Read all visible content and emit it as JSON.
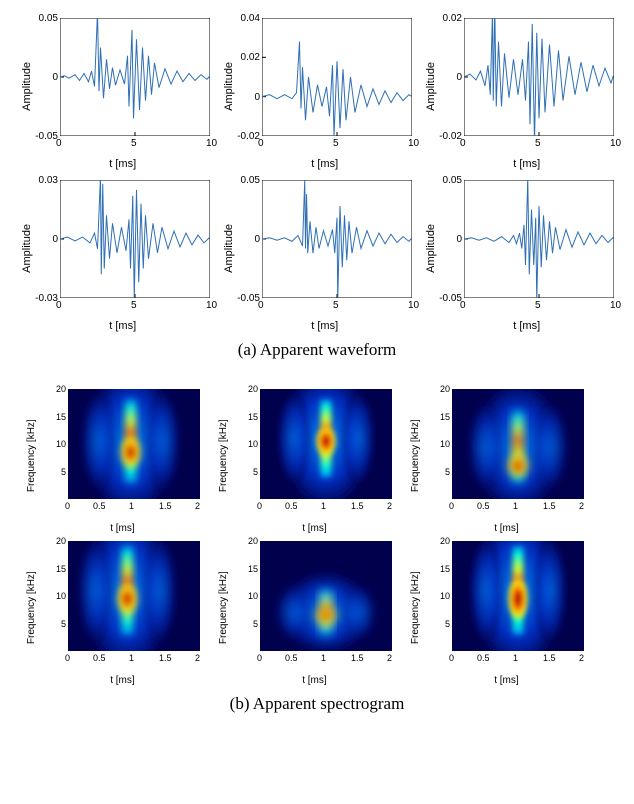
{
  "waveforms": {
    "ylabel": "Amplitude",
    "xlabel": "t [ms]",
    "line_color": "#2f6fb3",
    "axis_color": "#000000",
    "background_color": "#ffffff",
    "label_fontsize": 11,
    "tick_fontsize": 10,
    "xlim": [
      0,
      10
    ],
    "xtick_step": 5,
    "panels": [
      {
        "ylim": [
          -0.05,
          0.05
        ],
        "yticks": [
          -0.05,
          0,
          0.05
        ],
        "series": [
          [
            0,
            0
          ],
          [
            0.3,
            0.001
          ],
          [
            0.6,
            -0.001
          ],
          [
            1,
            0.002
          ],
          [
            1.3,
            -0.003
          ],
          [
            1.6,
            0.003
          ],
          [
            1.9,
            -0.004
          ],
          [
            2.1,
            0.005
          ],
          [
            2.3,
            -0.008
          ],
          [
            2.5,
            0.055
          ],
          [
            2.6,
            -0.012
          ],
          [
            2.7,
            0.025
          ],
          [
            2.9,
            -0.018
          ],
          [
            3.1,
            0.015
          ],
          [
            3.3,
            -0.01
          ],
          [
            3.5,
            0.008
          ],
          [
            3.7,
            -0.007
          ],
          [
            4,
            0.006
          ],
          [
            4.3,
            -0.006
          ],
          [
            4.5,
            0.018
          ],
          [
            4.6,
            -0.025
          ],
          [
            4.8,
            0.04
          ],
          [
            4.9,
            -0.035
          ],
          [
            5.1,
            0.032
          ],
          [
            5.3,
            -0.028
          ],
          [
            5.5,
            0.025
          ],
          [
            5.7,
            -0.02
          ],
          [
            5.9,
            0.018
          ],
          [
            6.1,
            -0.015
          ],
          [
            6.3,
            0.012
          ],
          [
            6.6,
            -0.009
          ],
          [
            7,
            0.007
          ],
          [
            7.4,
            -0.006
          ],
          [
            7.8,
            0.005
          ],
          [
            8.2,
            -0.004
          ],
          [
            8.6,
            0.003
          ],
          [
            9,
            -0.003
          ],
          [
            9.4,
            0.002
          ],
          [
            9.8,
            -0.002
          ],
          [
            10,
            0.001
          ]
        ]
      },
      {
        "ylim": [
          -0.02,
          0.04
        ],
        "yticks": [
          -0.02,
          0,
          0.02,
          0.04
        ],
        "series": [
          [
            0,
            0
          ],
          [
            0.5,
            0.001
          ],
          [
            1,
            -0.001
          ],
          [
            1.5,
            0.001
          ],
          [
            2,
            -0.001
          ],
          [
            2.3,
            0.002
          ],
          [
            2.5,
            0.028
          ],
          [
            2.6,
            -0.006
          ],
          [
            2.7,
            0.015
          ],
          [
            2.9,
            -0.012
          ],
          [
            3.1,
            0.01
          ],
          [
            3.4,
            -0.008
          ],
          [
            3.7,
            0.006
          ],
          [
            4,
            -0.005
          ],
          [
            4.3,
            0.005
          ],
          [
            4.5,
            -0.01
          ],
          [
            4.7,
            0.016
          ],
          [
            4.8,
            -0.02
          ],
          [
            5,
            0.018
          ],
          [
            5.2,
            -0.016
          ],
          [
            5.4,
            0.014
          ],
          [
            5.6,
            -0.012
          ],
          [
            5.9,
            0.01
          ],
          [
            6.2,
            -0.008
          ],
          [
            6.6,
            0.006
          ],
          [
            7,
            -0.005
          ],
          [
            7.4,
            0.004
          ],
          [
            7.8,
            -0.004
          ],
          [
            8.2,
            0.003
          ],
          [
            8.6,
            -0.003
          ],
          [
            9,
            0.002
          ],
          [
            9.4,
            -0.002
          ],
          [
            9.8,
            0.001
          ],
          [
            10,
            0
          ]
        ]
      },
      {
        "ylim": [
          -0.02,
          0.02
        ],
        "yticks": [
          -0.02,
          0,
          0.02
        ],
        "series": [
          [
            0,
            0
          ],
          [
            0.4,
            0.001
          ],
          [
            0.8,
            -0.001
          ],
          [
            1.1,
            0.002
          ],
          [
            1.4,
            -0.003
          ],
          [
            1.6,
            0.004
          ],
          [
            1.75,
            -0.006
          ],
          [
            1.9,
            0.022
          ],
          [
            1.95,
            -0.008
          ],
          [
            2.05,
            0.024
          ],
          [
            2.15,
            -0.01
          ],
          [
            2.3,
            0.012
          ],
          [
            2.5,
            -0.01
          ],
          [
            2.7,
            0.008
          ],
          [
            3,
            -0.007
          ],
          [
            3.3,
            0.006
          ],
          [
            3.6,
            -0.006
          ],
          [
            3.9,
            0.006
          ],
          [
            4.1,
            -0.008
          ],
          [
            4.3,
            0.012
          ],
          [
            4.4,
            -0.016
          ],
          [
            4.55,
            0.018
          ],
          [
            4.7,
            -0.022
          ],
          [
            4.85,
            0.015
          ],
          [
            5,
            -0.014
          ],
          [
            5.2,
            0.013
          ],
          [
            5.4,
            -0.012
          ],
          [
            5.7,
            0.011
          ],
          [
            6,
            -0.01
          ],
          [
            6.3,
            0.009
          ],
          [
            6.6,
            -0.008
          ],
          [
            7,
            0.007
          ],
          [
            7.4,
            -0.006
          ],
          [
            7.8,
            0.005
          ],
          [
            8.2,
            -0.005
          ],
          [
            8.6,
            0.004
          ],
          [
            9,
            -0.003
          ],
          [
            9.4,
            0.003
          ],
          [
            9.8,
            -0.002
          ],
          [
            10,
            0.001
          ]
        ]
      },
      {
        "ylim": [
          -0.03,
          0.03
        ],
        "yticks": [
          -0.03,
          0,
          0.03
        ],
        "series": [
          [
            0,
            0
          ],
          [
            0.5,
            0.001
          ],
          [
            1,
            -0.001
          ],
          [
            1.5,
            0.001
          ],
          [
            2,
            -0.002
          ],
          [
            2.3,
            0.003
          ],
          [
            2.5,
            -0.005
          ],
          [
            2.7,
            0.032
          ],
          [
            2.75,
            -0.018
          ],
          [
            2.85,
            0.028
          ],
          [
            2.95,
            -0.015
          ],
          [
            3.1,
            0.012
          ],
          [
            3.3,
            -0.01
          ],
          [
            3.5,
            0.008
          ],
          [
            3.8,
            -0.007
          ],
          [
            4.1,
            0.006
          ],
          [
            4.4,
            -0.006
          ],
          [
            4.6,
            0.01
          ],
          [
            4.7,
            -0.015
          ],
          [
            4.85,
            0.022
          ],
          [
            4.95,
            -0.03
          ],
          [
            5.1,
            0.025
          ],
          [
            5.25,
            -0.022
          ],
          [
            5.4,
            0.018
          ],
          [
            5.55,
            -0.015
          ],
          [
            5.7,
            0.012
          ],
          [
            5.9,
            -0.01
          ],
          [
            6.2,
            0.008
          ],
          [
            6.5,
            -0.007
          ],
          [
            6.8,
            0.006
          ],
          [
            7.2,
            -0.005
          ],
          [
            7.6,
            0.004
          ],
          [
            8,
            -0.004
          ],
          [
            8.4,
            0.003
          ],
          [
            8.8,
            -0.003
          ],
          [
            9.2,
            0.002
          ],
          [
            9.6,
            -0.002
          ],
          [
            10,
            0.001
          ]
        ]
      },
      {
        "ylim": [
          -0.05,
          0.05
        ],
        "yticks": [
          -0.05,
          0,
          0.05
        ],
        "series": [
          [
            0,
            0
          ],
          [
            0.5,
            0.001
          ],
          [
            1,
            -0.001
          ],
          [
            1.5,
            0.001
          ],
          [
            2,
            -0.002
          ],
          [
            2.4,
            0.003
          ],
          [
            2.7,
            -0.006
          ],
          [
            2.85,
            0.05
          ],
          [
            2.9,
            -0.008
          ],
          [
            2.97,
            0.038
          ],
          [
            3.05,
            -0.012
          ],
          [
            3.2,
            0.015
          ],
          [
            3.4,
            -0.012
          ],
          [
            3.6,
            0.01
          ],
          [
            3.8,
            -0.008
          ],
          [
            4.1,
            0.007
          ],
          [
            4.4,
            -0.006
          ],
          [
            4.7,
            0.008
          ],
          [
            4.85,
            -0.012
          ],
          [
            5,
            0.018
          ],
          [
            5.05,
            -0.052
          ],
          [
            5.2,
            0.028
          ],
          [
            5.35,
            -0.024
          ],
          [
            5.5,
            0.02
          ],
          [
            5.65,
            -0.018
          ],
          [
            5.8,
            0.015
          ],
          [
            6,
            -0.012
          ],
          [
            6.3,
            0.01
          ],
          [
            6.6,
            -0.008
          ],
          [
            7,
            0.007
          ],
          [
            7.4,
            -0.006
          ],
          [
            7.8,
            0.005
          ],
          [
            8.2,
            -0.004
          ],
          [
            8.6,
            0.004
          ],
          [
            9,
            -0.003
          ],
          [
            9.4,
            0.002
          ],
          [
            9.8,
            -0.002
          ],
          [
            10,
            0.001
          ]
        ]
      },
      {
        "ylim": [
          -0.05,
          0.05
        ],
        "yticks": [
          -0.05,
          0,
          0.05
        ],
        "series": [
          [
            0,
            0
          ],
          [
            0.5,
            0.001
          ],
          [
            1,
            -0.001
          ],
          [
            1.5,
            0.001
          ],
          [
            2,
            -0.002
          ],
          [
            2.5,
            0.002
          ],
          [
            3,
            -0.003
          ],
          [
            3.3,
            0.003
          ],
          [
            3.5,
            -0.004
          ],
          [
            3.7,
            0.005
          ],
          [
            3.85,
            -0.008
          ],
          [
            4,
            0.012
          ],
          [
            4.1,
            -0.022
          ],
          [
            4.25,
            0.052
          ],
          [
            4.35,
            -0.03
          ],
          [
            4.5,
            0.025
          ],
          [
            4.65,
            -0.022
          ],
          [
            4.78,
            0.018
          ],
          [
            4.85,
            -0.052
          ],
          [
            5,
            0.028
          ],
          [
            5.15,
            -0.024
          ],
          [
            5.3,
            0.02
          ],
          [
            5.5,
            -0.018
          ],
          [
            5.7,
            0.015
          ],
          [
            5.9,
            -0.012
          ],
          [
            6.1,
            0.01
          ],
          [
            6.4,
            -0.009
          ],
          [
            6.8,
            0.008
          ],
          [
            7.2,
            -0.007
          ],
          [
            7.6,
            0.006
          ],
          [
            8,
            -0.005
          ],
          [
            8.4,
            0.005
          ],
          [
            8.8,
            -0.004
          ],
          [
            9.2,
            0.003
          ],
          [
            9.6,
            -0.003
          ],
          [
            10,
            0.002
          ]
        ]
      }
    ]
  },
  "spectrograms": {
    "ylabel": "Frequency [kHz]",
    "xlabel": "t [ms]",
    "label_fontsize": 10,
    "tick_fontsize": 9,
    "xlim": [
      0,
      2
    ],
    "xticks": [
      0,
      0.5,
      1,
      1.5,
      2
    ],
    "ylim": [
      0,
      20
    ],
    "yticks": [
      5,
      10,
      15,
      20
    ],
    "colormap": {
      "low": "#00004d",
      "mid1": "#0033cc",
      "mid2": "#0099ff",
      "mid3": "#00ffcc",
      "mid4": "#ccff33",
      "high1": "#ffcc00",
      "high2": "#ff6600",
      "hot": "#cc0000",
      "peak": "#800000"
    },
    "panels": [
      {
        "ridge_x": 0.95,
        "ridge_f1": 3,
        "ridge_f2": 18,
        "hot_f1": 6,
        "hot_f2": 11,
        "blur": 0.18
      },
      {
        "ridge_x": 1.0,
        "ridge_f1": 4,
        "ridge_f2": 18,
        "hot_f1": 8,
        "hot_f2": 13,
        "blur": 0.15
      },
      {
        "ridge_x": 1.0,
        "ridge_f1": 3,
        "ridge_f2": 16,
        "hot_f1": 4,
        "hot_f2": 8,
        "blur": 0.22
      },
      {
        "ridge_x": 0.9,
        "ridge_f1": 3,
        "ridge_f2": 19,
        "hot_f1": 7,
        "hot_f2": 12,
        "blur": 0.18
      },
      {
        "ridge_x": 1.0,
        "ridge_f1": 3,
        "ridge_f2": 11,
        "hot_f1": 5,
        "hot_f2": 8,
        "blur": 0.25
      },
      {
        "ridge_x": 1.0,
        "ridge_f1": 3,
        "ridge_f2": 19,
        "hot_f1": 6,
        "hot_f2": 13,
        "blur": 0.15
      }
    ]
  },
  "captions": {
    "a": "(a) Apparent waveform",
    "b": "(b) Apparent spectrogram"
  }
}
